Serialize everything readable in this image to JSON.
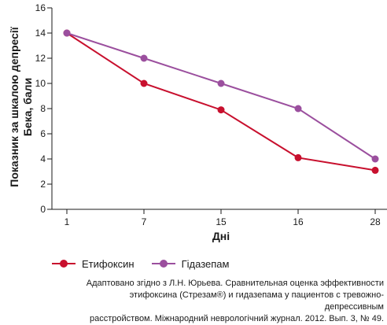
{
  "chart_data": {
    "type": "line",
    "categories": [
      "1",
      "7",
      "15",
      "16",
      "28"
    ],
    "series": [
      {
        "name": "Етифоксин",
        "color": "#c8102e",
        "values": [
          14,
          10,
          7.9,
          4.1,
          3.1
        ]
      },
      {
        "name": "Гідазепам",
        "color": "#9b4f9e",
        "values": [
          14,
          12,
          10,
          8,
          4
        ]
      }
    ],
    "xlabel": "Дні",
    "ylabel_line1": "Показник за шкалою депресії",
    "ylabel_line2": "Бека, бали",
    "ylim": [
      0,
      16
    ],
    "yticks": [
      0,
      2,
      4,
      6,
      8,
      10,
      12,
      14,
      16
    ],
    "grid": false,
    "legend_position": "bottom-left"
  },
  "source": {
    "line1": "Адаптовано згідно з Л.Н. Юрьева. Сравнительная оценка эффективности",
    "line2": "этифоксина (Стрезам®) и гидазепама у пациентов с тревожно-депрессивным",
    "line3": "расстройством. Міжнародний неврологічний журнал. 2012. Вып. 3, № 49."
  }
}
